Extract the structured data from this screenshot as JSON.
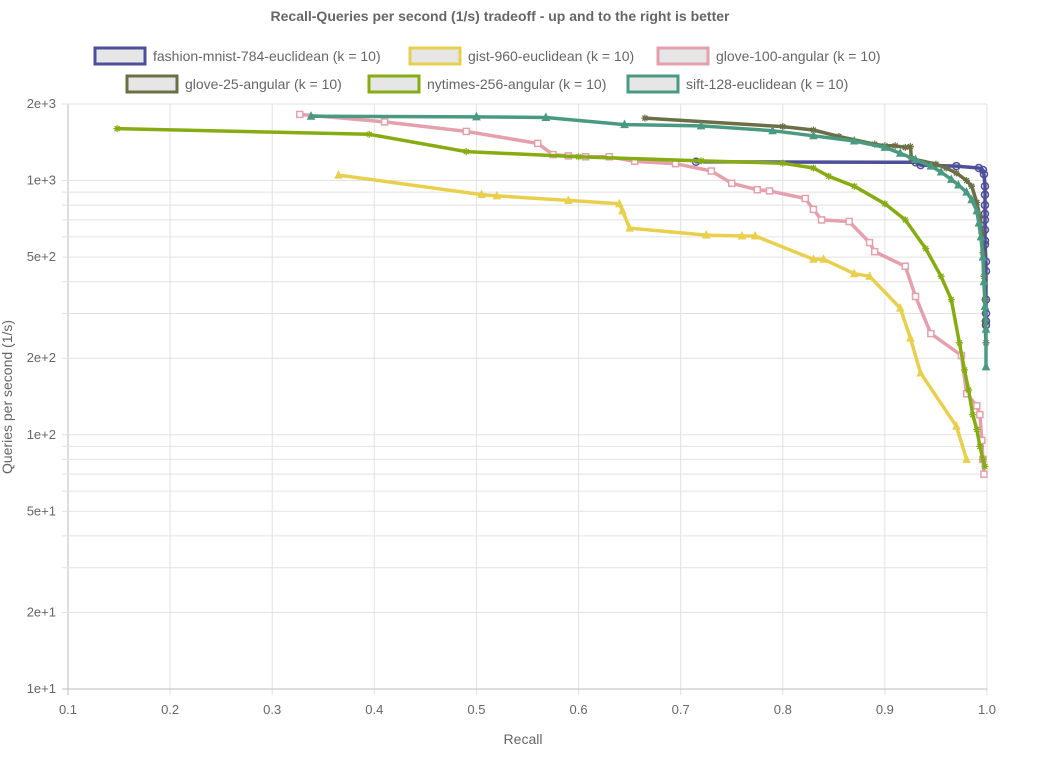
{
  "chart_data": {
    "type": "line",
    "title": "Recall-Queries per second (1/s) tradeoff - up and to the right is better",
    "xlabel": "Recall",
    "ylabel": "Queries per second (1/s)",
    "xscale": "linear",
    "yscale": "log",
    "xlim": [
      0.1,
      1.0
    ],
    "ylim": [
      10,
      2000
    ],
    "grid": true,
    "legend_position": "top",
    "x_ticks": [
      "0.1",
      "0.2",
      "0.3",
      "0.4",
      "0.5",
      "0.6",
      "0.7",
      "0.8",
      "0.9",
      "1.0"
    ],
    "y_ticks": [
      {
        "value": 2000,
        "label": "2e+3"
      },
      {
        "value": 1000,
        "label": "1e+3"
      },
      {
        "value": 500,
        "label": "5e+2"
      },
      {
        "value": 200,
        "label": "2e+2"
      },
      {
        "value": 100,
        "label": "1e+2"
      },
      {
        "value": 50,
        "label": "5e+1"
      },
      {
        "value": 20,
        "label": "2e+1"
      },
      {
        "value": 10,
        "label": "1e+1"
      }
    ],
    "series": [
      {
        "name": "fashion-mnist-784-euclidean (k = 10)",
        "color": "#4e4f9a",
        "marker": "circle",
        "points": [
          [
            0.715,
            1185
          ],
          [
            0.93,
            1180
          ],
          [
            0.935,
            1150
          ],
          [
            0.97,
            1140
          ],
          [
            0.992,
            1120
          ],
          [
            0.996,
            1100
          ],
          [
            0.997,
            1060
          ],
          [
            0.998,
            950
          ],
          [
            0.998,
            880
          ],
          [
            0.998,
            800
          ],
          [
            0.998,
            740
          ],
          [
            0.998,
            700
          ],
          [
            0.998,
            640
          ],
          [
            0.998,
            580
          ],
          [
            0.998,
            560
          ],
          [
            0.999,
            480
          ],
          [
            0.999,
            440
          ],
          [
            0.999,
            340
          ],
          [
            0.999,
            300
          ],
          [
            0.999,
            280
          ],
          [
            0.999,
            270
          ]
        ]
      },
      {
        "name": "gist-960-euclidean (k = 10)",
        "color": "#e8d04e",
        "marker": "triangle",
        "points": [
          [
            0.365,
            1050
          ],
          [
            0.505,
            880
          ],
          [
            0.52,
            870
          ],
          [
            0.59,
            835
          ],
          [
            0.64,
            810
          ],
          [
            0.643,
            760
          ],
          [
            0.65,
            650
          ],
          [
            0.725,
            610
          ],
          [
            0.76,
            605
          ],
          [
            0.773,
            605
          ],
          [
            0.83,
            490
          ],
          [
            0.84,
            490
          ],
          [
            0.87,
            430
          ],
          [
            0.885,
            420
          ],
          [
            0.915,
            315
          ],
          [
            0.925,
            240
          ],
          [
            0.935,
            175
          ],
          [
            0.97,
            108
          ],
          [
            0.98,
            80
          ]
        ]
      },
      {
        "name": "glove-100-angular (k = 10)",
        "color": "#e4a0ad",
        "marker": "square",
        "points": [
          [
            0.327,
            1820
          ],
          [
            0.41,
            1700
          ],
          [
            0.49,
            1560
          ],
          [
            0.56,
            1400
          ],
          [
            0.575,
            1265
          ],
          [
            0.59,
            1250
          ],
          [
            0.607,
            1240
          ],
          [
            0.63,
            1240
          ],
          [
            0.655,
            1190
          ],
          [
            0.695,
            1165
          ],
          [
            0.73,
            1090
          ],
          [
            0.75,
            975
          ],
          [
            0.775,
            920
          ],
          [
            0.787,
            910
          ],
          [
            0.822,
            850
          ],
          [
            0.83,
            770
          ],
          [
            0.838,
            700
          ],
          [
            0.865,
            690
          ],
          [
            0.885,
            570
          ],
          [
            0.89,
            525
          ],
          [
            0.92,
            460
          ],
          [
            0.93,
            350
          ],
          [
            0.945,
            250
          ],
          [
            0.975,
            205
          ],
          [
            0.98,
            145
          ],
          [
            0.99,
            130
          ],
          [
            0.993,
            120
          ],
          [
            0.995,
            95
          ],
          [
            0.996,
            80
          ],
          [
            0.997,
            70
          ]
        ]
      },
      {
        "name": "glove-25-angular (k = 10)",
        "color": "#6b6f45",
        "marker": "asterisk",
        "points": [
          [
            0.665,
            1760
          ],
          [
            0.8,
            1630
          ],
          [
            0.83,
            1580
          ],
          [
            0.855,
            1490
          ],
          [
            0.89,
            1390
          ],
          [
            0.9,
            1370
          ],
          [
            0.91,
            1370
          ],
          [
            0.92,
            1350
          ],
          [
            0.925,
            1360
          ],
          [
            0.926,
            1220
          ],
          [
            0.95,
            1160
          ],
          [
            0.96,
            1120
          ],
          [
            0.97,
            1070
          ],
          [
            0.98,
            1000
          ],
          [
            0.985,
            950
          ],
          [
            0.99,
            820
          ],
          [
            0.993,
            720
          ],
          [
            0.995,
            620
          ],
          [
            0.996,
            520
          ],
          [
            0.997,
            420
          ],
          [
            0.998,
            340
          ],
          [
            0.998,
            280
          ],
          [
            0.999,
            230
          ]
        ]
      },
      {
        "name": "nytimes-256-angular (k = 10)",
        "color": "#86ac12",
        "marker": "asterisk",
        "points": [
          [
            0.148,
            1600
          ],
          [
            0.395,
            1520
          ],
          [
            0.49,
            1300
          ],
          [
            0.6,
            1240
          ],
          [
            0.72,
            1195
          ],
          [
            0.8,
            1170
          ],
          [
            0.83,
            1120
          ],
          [
            0.845,
            1040
          ],
          [
            0.87,
            950
          ],
          [
            0.9,
            810
          ],
          [
            0.92,
            700
          ],
          [
            0.94,
            540
          ],
          [
            0.955,
            420
          ],
          [
            0.965,
            340
          ],
          [
            0.973,
            230
          ],
          [
            0.978,
            180
          ],
          [
            0.982,
            150
          ],
          [
            0.986,
            120
          ],
          [
            0.99,
            105
          ],
          [
            0.993,
            90
          ],
          [
            0.996,
            80
          ],
          [
            0.998,
            75
          ]
        ]
      },
      {
        "name": "sift-128-euclidean (k = 10)",
        "color": "#4a9a82",
        "marker": "triangle",
        "points": [
          [
            0.338,
            1790
          ],
          [
            0.5,
            1780
          ],
          [
            0.568,
            1770
          ],
          [
            0.645,
            1660
          ],
          [
            0.72,
            1640
          ],
          [
            0.79,
            1570
          ],
          [
            0.83,
            1500
          ],
          [
            0.87,
            1430
          ],
          [
            0.9,
            1350
          ],
          [
            0.915,
            1280
          ],
          [
            0.93,
            1210
          ],
          [
            0.945,
            1140
          ],
          [
            0.955,
            1080
          ],
          [
            0.965,
            1010
          ],
          [
            0.972,
            960
          ],
          [
            0.98,
            900
          ],
          [
            0.985,
            840
          ],
          [
            0.99,
            760
          ],
          [
            0.992,
            680
          ],
          [
            0.994,
            600
          ],
          [
            0.996,
            500
          ],
          [
            0.997,
            400
          ],
          [
            0.998,
            320
          ],
          [
            0.999,
            260
          ],
          [
            0.999,
            185
          ]
        ]
      }
    ]
  }
}
